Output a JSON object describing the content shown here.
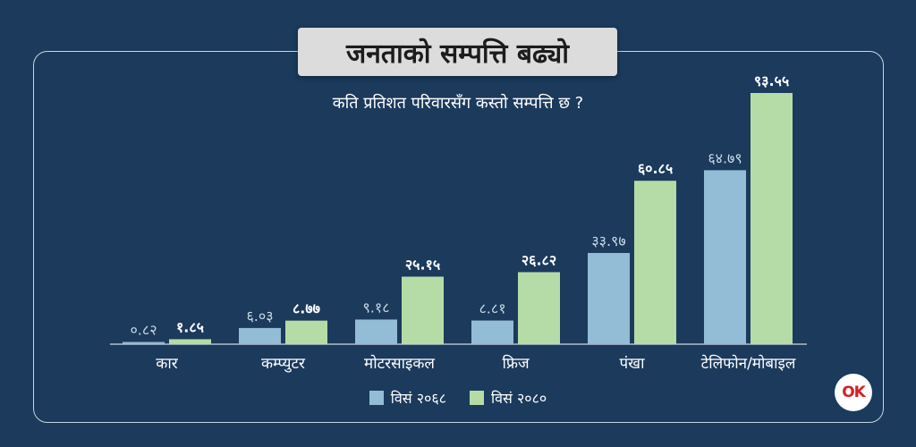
{
  "title": "जनताको सम्पत्ति बढ्यो",
  "subtitle": "कति प्रतिशत परिवारसँग कस्तो सम्पत्ति छ ?",
  "chart_data": {
    "type": "bar",
    "categories": [
      "कार",
      "कम्प्युटर",
      "मोटरसाइकल",
      "फ्रिज",
      "पंखा",
      "टेलिफोन/मोबाइल"
    ],
    "series": [
      {
        "name": "विसं २०६८",
        "color": "#93bcd6",
        "values": [
          0.82,
          6.03,
          9.18,
          8.81,
          33.97,
          64.79
        ],
        "labels": [
          "०.८२",
          "६.०३",
          "९.१८",
          "८.८१",
          "३३.९७",
          "६४.७९"
        ]
      },
      {
        "name": "विसं २०८०",
        "color": "#b5dca6",
        "values": [
          1.85,
          8.77,
          25.15,
          26.82,
          60.85,
          93.55
        ],
        "labels": [
          "१.८५",
          "८.७७",
          "२५.१५",
          "२६.८२",
          "६०.८५",
          "९३.५५"
        ]
      }
    ],
    "ylim": [
      0,
      100
    ],
    "grid": false,
    "legend_position": "bottom"
  },
  "logo": {
    "text": "OK"
  }
}
